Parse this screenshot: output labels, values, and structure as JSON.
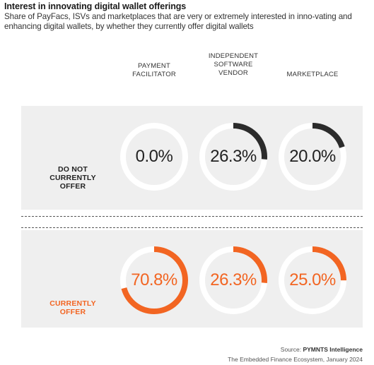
{
  "title": "Interest in innovating digital wallet offerings",
  "subtitle": "Share of PayFacs, ISVs and marketplaces that are very or extremely interested in inno-vating and enhancing digital wallets, by whether they currently offer digital wallets",
  "columns": [
    {
      "lines": [
        "PAYMENT",
        "FACILITATOR"
      ]
    },
    {
      "lines": [
        "INDEPENDENT",
        "SOFTWARE",
        "VENDOR"
      ]
    },
    {
      "lines": [
        "MARKETPLACE"
      ]
    }
  ],
  "rows": [
    {
      "lines": [
        "DO NOT",
        "CURRENTLY",
        "OFFER"
      ],
      "color": "#222222",
      "ring_color": "#2b2b2b",
      "value_color": "#222222"
    },
    {
      "lines": [
        "CURRENTLY",
        "OFFER"
      ],
      "color": "#f26522",
      "ring_color": "#f26522",
      "value_color": "#f26522"
    }
  ],
  "source": {
    "prefix": "Source: ",
    "name": "PYMNTS Intelligence",
    "report": "The Embedded Finance Ecosystem, January 2024"
  },
  "colors": {
    "track": "#ffffff",
    "panel": "#efefef",
    "dark": "#2b2b2b",
    "orange": "#f26522"
  },
  "chart_data": {
    "type": "table",
    "title": "Interest in innovating digital wallet offerings",
    "categories": [
      "PAYMENT FACILITATOR",
      "INDEPENDENT SOFTWARE VENDOR",
      "MARKETPLACE"
    ],
    "unit": "%",
    "series": [
      {
        "name": "DO NOT CURRENTLY OFFER",
        "values": [
          0.0,
          26.3,
          20.0
        ],
        "labels": [
          "0.0%",
          "26.3%",
          "20.0%"
        ]
      },
      {
        "name": "CURRENTLY OFFER",
        "values": [
          70.8,
          26.3,
          25.0
        ],
        "labels": [
          "70.8%",
          "26.3%",
          "25.0%"
        ]
      }
    ],
    "ylim": [
      0,
      100
    ]
  }
}
